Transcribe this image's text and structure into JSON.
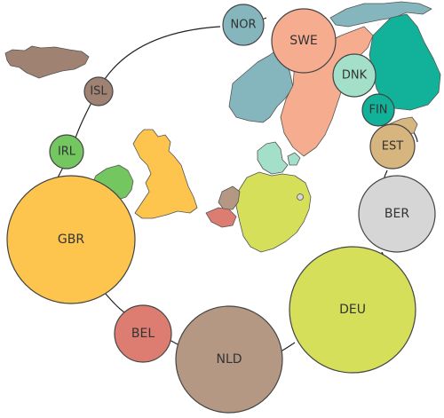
{
  "colors": {
    "ISL": "#a08272",
    "IRL": "#73c660",
    "GBR": "#fdc54e",
    "NOR": "#85b6bd",
    "SWE": "#f6ac8f",
    "DNK": "#a3dfc9",
    "FIN": "#12b29a",
    "EST": "#d7b57f",
    "BER": "#d6d6d6",
    "DEU": "#d5df5a",
    "NLD": "#b49883",
    "BEL": "#dd7d72"
  },
  "bubbles": [
    {
      "code": "NOR",
      "label": "NOR",
      "size": "small"
    },
    {
      "code": "SWE",
      "label": "SWE",
      "size": "medium"
    },
    {
      "code": "DNK",
      "label": "DNK",
      "size": "small"
    },
    {
      "code": "FIN",
      "label": "FIN",
      "size": "small"
    },
    {
      "code": "EST",
      "label": "EST",
      "size": "small"
    },
    {
      "code": "BER",
      "label": "BER",
      "size": "medium"
    },
    {
      "code": "DEU",
      "label": "DEU",
      "size": "large"
    },
    {
      "code": "NLD",
      "label": "NLD",
      "size": "large"
    },
    {
      "code": "BEL",
      "label": "BEL",
      "size": "small"
    },
    {
      "code": "GBR",
      "label": "GBR",
      "size": "large"
    },
    {
      "code": "IRL",
      "label": "IRL",
      "size": "small"
    },
    {
      "code": "ISL",
      "label": "ISL",
      "size": "small"
    }
  ]
}
